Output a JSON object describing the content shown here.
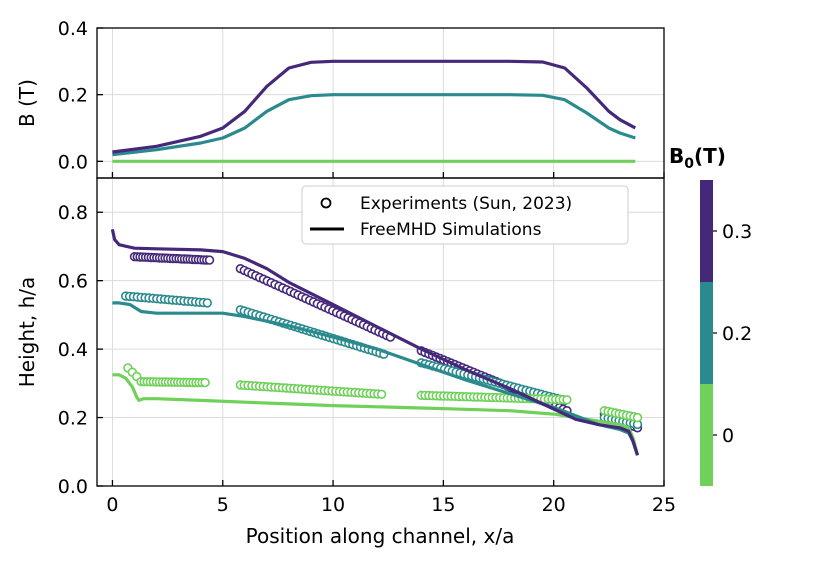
{
  "colors": {
    "0.3": "#45287a",
    "0.2": "#2a8a8e",
    "0": "#6fd05a"
  },
  "chart_data": [
    {
      "type": "line",
      "ylabel": "B (T)",
      "xlim": [
        -0.7,
        25
      ],
      "ylim": [
        -0.05,
        0.4
      ],
      "yticks": [
        "0.0",
        "0.2",
        "0.4"
      ],
      "yticks_values": [
        0.0,
        0.2,
        0.4
      ],
      "grid": true,
      "series": [
        {
          "b0": "0.3",
          "x": [
            0,
            2,
            4,
            5,
            6,
            7,
            8,
            9,
            10,
            12,
            15,
            18,
            19.5,
            20.5,
            21.5,
            22.5,
            23,
            23.7
          ],
          "y": [
            0.028,
            0.045,
            0.075,
            0.1,
            0.15,
            0.225,
            0.28,
            0.297,
            0.3,
            0.3,
            0.3,
            0.3,
            0.298,
            0.28,
            0.22,
            0.15,
            0.125,
            0.1
          ]
        },
        {
          "b0": "0.2",
          "x": [
            0,
            2,
            4,
            5,
            6,
            7,
            8,
            9,
            10,
            12,
            15,
            18,
            19.5,
            20.5,
            21.5,
            22.5,
            23,
            23.7
          ],
          "y": [
            0.02,
            0.035,
            0.055,
            0.07,
            0.1,
            0.15,
            0.185,
            0.197,
            0.2,
            0.2,
            0.2,
            0.2,
            0.198,
            0.185,
            0.145,
            0.1,
            0.085,
            0.07
          ]
        },
        {
          "b0": "0",
          "x": [
            0,
            23.7
          ],
          "y": [
            0.0,
            0.0
          ]
        }
      ]
    },
    {
      "type": "scatter",
      "xlabel": "Position along channel, x/a",
      "ylabel": "Height, h/a",
      "xlim": [
        -0.7,
        25
      ],
      "ylim": [
        0,
        0.9
      ],
      "xticks": [
        "0",
        "5",
        "10",
        "15",
        "20",
        "25"
      ],
      "xticks_values": [
        0,
        5,
        10,
        15,
        20,
        25
      ],
      "yticks": [
        "0.0",
        "0.2",
        "0.4",
        "0.6",
        "0.8"
      ],
      "yticks_values": [
        0.0,
        0.2,
        0.4,
        0.6,
        0.8
      ],
      "grid": true,
      "legend": {
        "position": "top-right",
        "entries": [
          "Experiments (Sun, 2023)",
          "FreeMHD Simulations"
        ]
      },
      "experiments": [
        {
          "b0": "0.3",
          "segments": [
            {
              "x0": 1.0,
              "x1": 4.4,
              "y0": 0.67,
              "y1": 0.66,
              "n": 28
            },
            {
              "x0": 5.8,
              "x1": 12.6,
              "y0": 0.635,
              "y1": 0.435,
              "n": 40
            },
            {
              "x0": 14.0,
              "x1": 20.6,
              "y0": 0.395,
              "y1": 0.22,
              "n": 40
            },
            {
              "x0": 22.3,
              "x1": 23.8,
              "y0": 0.21,
              "y1": 0.17,
              "n": 10
            }
          ]
        },
        {
          "b0": "0.2",
          "segments": [
            {
              "x0": 0.6,
              "x1": 4.3,
              "y0": 0.555,
              "y1": 0.535,
              "n": 22
            },
            {
              "x0": 5.8,
              "x1": 12.3,
              "y0": 0.515,
              "y1": 0.385,
              "n": 38
            },
            {
              "x0": 14.0,
              "x1": 20.5,
              "y0": 0.36,
              "y1": 0.25,
              "n": 38
            },
            {
              "x0": 22.3,
              "x1": 23.8,
              "y0": 0.2,
              "y1": 0.18,
              "n": 10
            }
          ]
        },
        {
          "b0": "0",
          "segments": [
            {
              "x0": 0.7,
              "x1": 1.1,
              "y0": 0.345,
              "y1": 0.32,
              "n": 3
            },
            {
              "x0": 1.3,
              "x1": 4.2,
              "y0": 0.305,
              "y1": 0.302,
              "n": 22
            },
            {
              "x0": 5.8,
              "x1": 12.2,
              "y0": 0.295,
              "y1": 0.268,
              "n": 38
            },
            {
              "x0": 14.0,
              "x1": 20.6,
              "y0": 0.265,
              "y1": 0.252,
              "n": 40
            },
            {
              "x0": 22.3,
              "x1": 23.8,
              "y0": 0.22,
              "y1": 0.2,
              "n": 10
            }
          ]
        }
      ],
      "simulations": [
        {
          "b0": "0.3",
          "x": [
            0,
            0.1,
            0.3,
            1,
            2,
            4,
            5,
            6,
            7,
            8,
            10,
            12,
            14,
            16,
            18,
            20,
            21,
            22,
            23,
            23.4,
            23.6,
            23.8
          ],
          "y": [
            0.75,
            0.72,
            0.705,
            0.695,
            0.693,
            0.69,
            0.685,
            0.665,
            0.635,
            0.595,
            0.53,
            0.465,
            0.4,
            0.34,
            0.285,
            0.225,
            0.195,
            0.18,
            0.17,
            0.16,
            0.13,
            0.09
          ]
        },
        {
          "b0": "0.2",
          "x": [
            0,
            0.3,
            0.8,
            1.3,
            2,
            3,
            5,
            6,
            8,
            10,
            12,
            14,
            16,
            18,
            20,
            21,
            22,
            23,
            23.4,
            23.6,
            23.8
          ],
          "y": [
            0.535,
            0.535,
            0.53,
            0.51,
            0.505,
            0.505,
            0.505,
            0.495,
            0.468,
            0.435,
            0.4,
            0.355,
            0.31,
            0.27,
            0.23,
            0.205,
            0.18,
            0.165,
            0.155,
            0.13,
            0.09
          ]
        },
        {
          "b0": "0",
          "x": [
            0,
            0.3,
            0.6,
            0.9,
            1.1,
            1.2,
            1.4,
            2,
            4,
            6,
            8,
            10,
            14,
            16,
            18,
            20,
            22,
            23,
            23.4,
            23.6,
            23.8
          ],
          "y": [
            0.325,
            0.325,
            0.315,
            0.29,
            0.26,
            0.25,
            0.255,
            0.255,
            0.25,
            0.245,
            0.24,
            0.235,
            0.228,
            0.224,
            0.22,
            0.21,
            0.19,
            0.18,
            0.17,
            0.14,
            0.09
          ]
        }
      ]
    }
  ],
  "colorbar": {
    "title_main": "B",
    "title_sub": "0",
    "title_rest": "(T)",
    "levels": [
      {
        "label": "0.3",
        "color": "#45287a"
      },
      {
        "label": "0.2",
        "color": "#2a8a8e"
      },
      {
        "label": "0",
        "color": "#6fd05a"
      }
    ]
  }
}
